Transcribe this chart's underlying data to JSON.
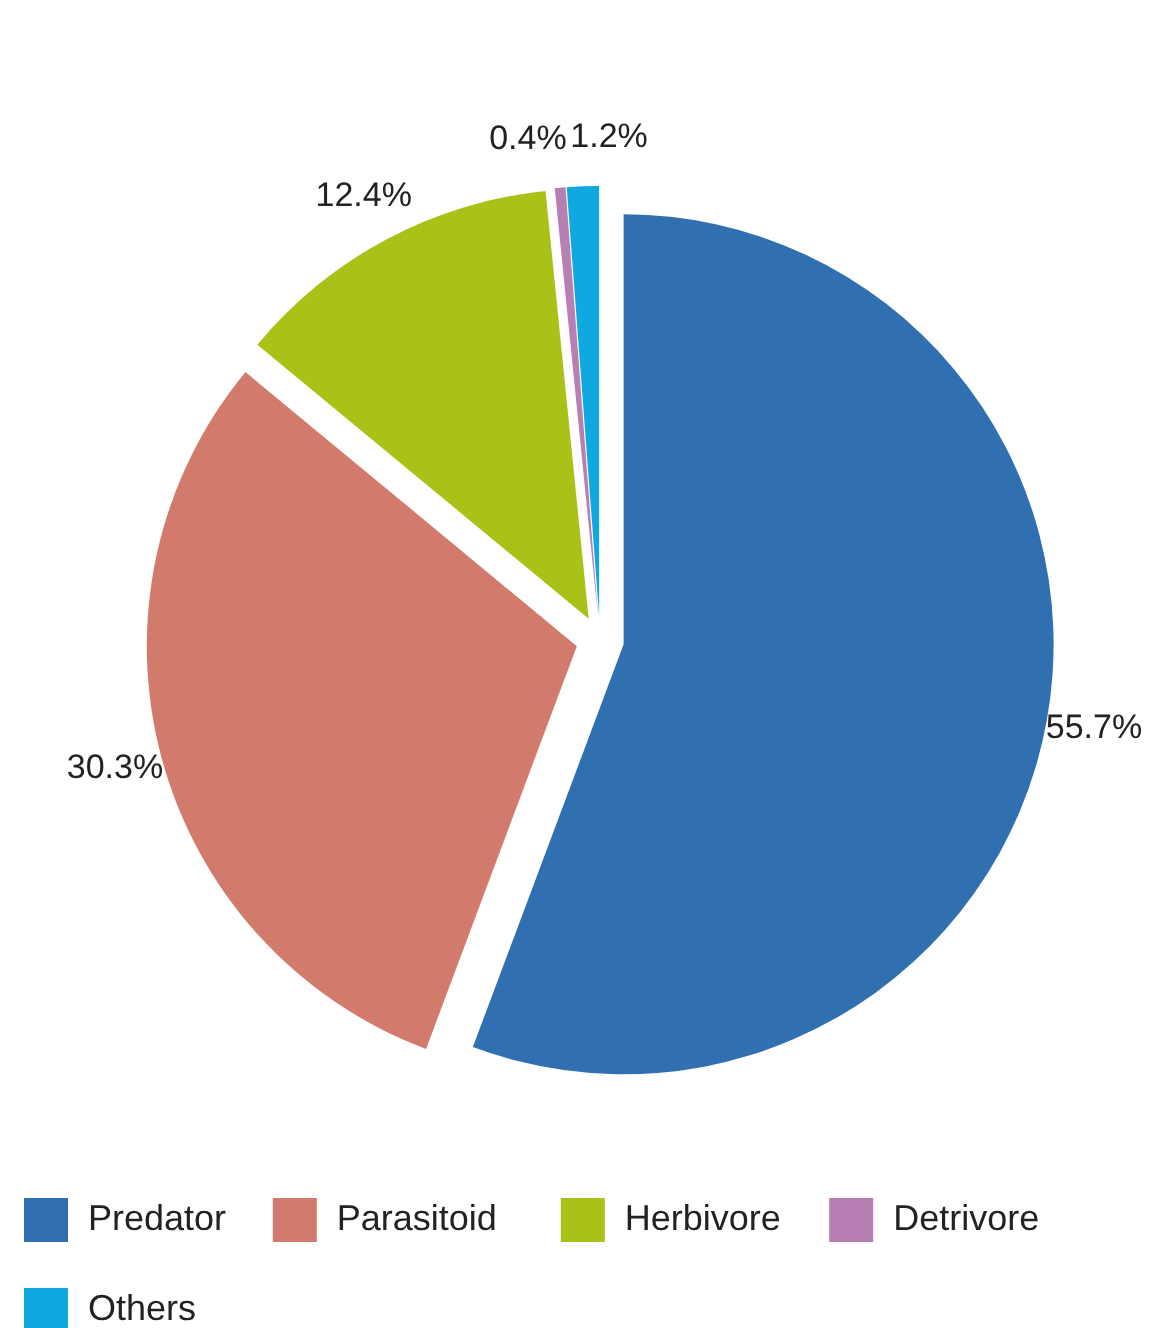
{
  "chart_data": {
    "type": "pie",
    "categories": [
      "Predator",
      "Parasitoid",
      "Herbivore",
      "Detrivore",
      "Others"
    ],
    "values": [
      55.7,
      30.3,
      12.4,
      0.4,
      1.2
    ],
    "colors": [
      "#3070b0",
      "#d27a6c",
      "#aac118",
      "#b77fb4",
      "#10a8e0"
    ],
    "value_labels": [
      "55.7%",
      "30.3%",
      "12.4%",
      "0.4%",
      "1.2%"
    ],
    "legend": "bottom"
  }
}
